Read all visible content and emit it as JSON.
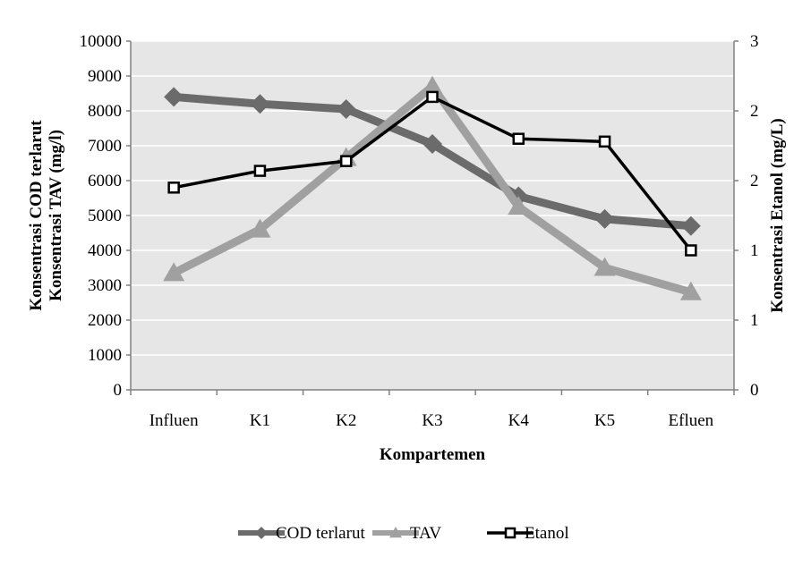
{
  "chart_data": {
    "type": "line",
    "title": "",
    "categories": [
      "Influen",
      "K1",
      "K2",
      "K3",
      "K4",
      "K5",
      "Efluen"
    ],
    "xlabel": "Kompartemen",
    "ylabel_left": [
      "Konsentrasi COD terlarut",
      "Konsentrasi TAV (mg/l)"
    ],
    "ylabel_right": "Konsentrasi Etanol (mg/L)",
    "ylim_left": [
      0,
      10000
    ],
    "yticks_left": [
      0,
      1000,
      2000,
      3000,
      4000,
      5000,
      6000,
      7000,
      8000,
      9000,
      10000
    ],
    "ylim_right": [
      0,
      2.5
    ],
    "yticks_right_labels": [
      "0",
      "1",
      "1",
      "2",
      "2",
      "3"
    ],
    "grid": true,
    "legend_position": "bottom",
    "series": [
      {
        "name": "COD terlarut",
        "axis": "left",
        "color": "#6b6b6b",
        "marker": "diamond",
        "values": [
          8400,
          8200,
          8050,
          7050,
          5550,
          4900,
          4700
        ]
      },
      {
        "name": "TAV",
        "axis": "left",
        "color": "#a0a0a0",
        "marker": "triangle",
        "values": [
          3350,
          4600,
          6650,
          8700,
          5250,
          3500,
          2800
        ]
      },
      {
        "name": "Etanol",
        "axis": "right",
        "color": "#000000",
        "marker": "square",
        "values": [
          1.45,
          1.57,
          1.64,
          2.1,
          1.8,
          1.78,
          1.0
        ]
      }
    ]
  }
}
